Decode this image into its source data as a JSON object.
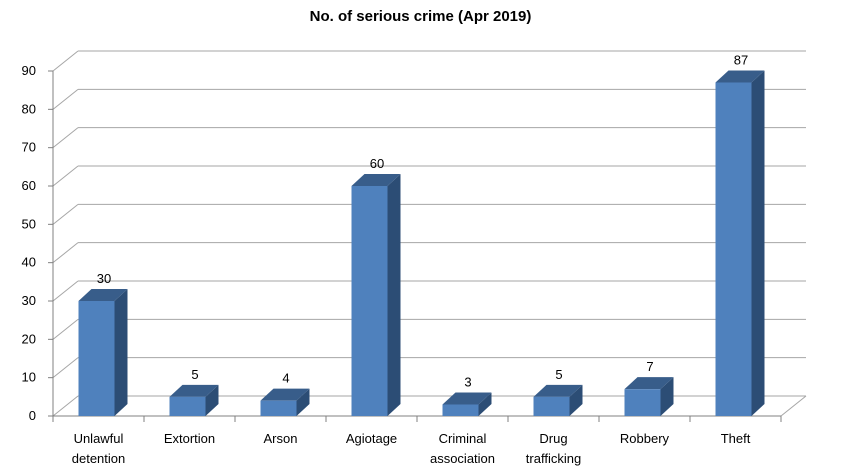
{
  "chart_data": {
    "type": "bar",
    "title": "No. of serious crime (Apr 2019)",
    "categories": [
      [
        "Unlawful",
        "detention"
      ],
      [
        "Extortion"
      ],
      [
        "Arson"
      ],
      [
        "Agiotage"
      ],
      [
        "Criminal",
        "association"
      ],
      [
        "Drug",
        "trafficking"
      ],
      [
        "Robbery"
      ],
      [
        "Theft"
      ]
    ],
    "values": [
      30,
      5,
      4,
      60,
      3,
      5,
      7,
      87
    ],
    "data_labels": [
      "30",
      "5",
      "4",
      "60",
      "3",
      "5",
      "7",
      "87"
    ],
    "y_ticks": [
      "0",
      "10",
      "20",
      "30",
      "40",
      "50",
      "60",
      "70",
      "80",
      "90"
    ],
    "ylim": [
      0,
      90
    ],
    "grid": true,
    "legend": "none",
    "colors": {
      "bar_front": "#4F81BD",
      "bar_side": "#2C4D75",
      "bar_top": "#385D8A",
      "grid": "#A6A6A6"
    }
  }
}
